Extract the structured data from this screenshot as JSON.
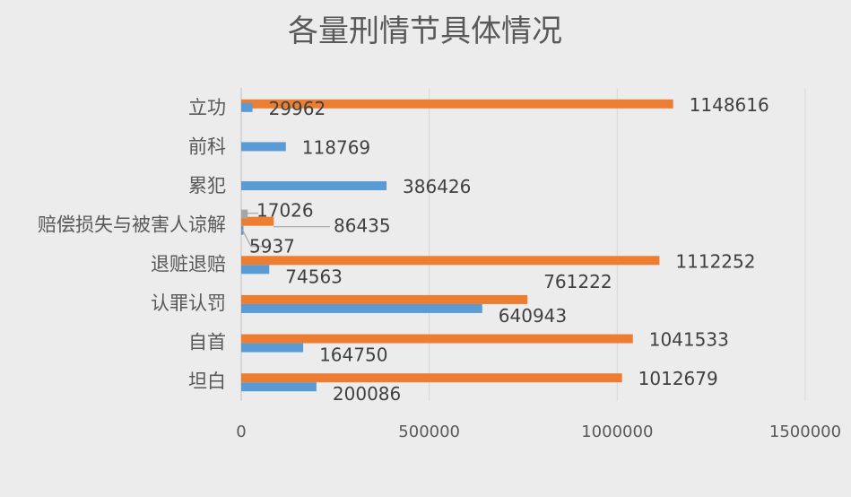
{
  "chart_data": {
    "type": "bar",
    "orientation": "horizontal",
    "title": "各量刑情节具体情况",
    "categories": [
      "坦白",
      "自首",
      "认罪认罚",
      "退赃退赔",
      "赔偿损失与被害人谅解",
      "累犯",
      "前科",
      "立功"
    ],
    "series": [
      {
        "values": [
          200086,
          164750,
          640943,
          74563,
          5937,
          null,
          null,
          null
        ]
      },
      {
        "values": [
          1012679,
          1041533,
          761222,
          1112252,
          86435,
          null,
          null,
          1148616
        ]
      },
      {
        "values": [
          null,
          null,
          null,
          null,
          17026,
          null,
          null,
          null
        ]
      },
      {
        "values": [
          null,
          null,
          null,
          null,
          null,
          386426,
          118769,
          29962
        ]
      }
    ],
    "data_labels": {
      "坦白": [
        "200086",
        "1012679"
      ],
      "自首": [
        "164750",
        "1041533"
      ],
      "认罪认罚": [
        "640943",
        "761222"
      ],
      "退赃退赔": [
        "74563",
        "1112252"
      ],
      "赔偿损失与被害人谅解": [
        "5937",
        "86435",
        "17026"
      ],
      "累犯": [
        "386426"
      ],
      "前科": [
        "118769"
      ],
      "立功": [
        "29962",
        "1148616"
      ]
    },
    "x_ticks": [
      "0",
      "500000",
      "1000000",
      "1500000"
    ],
    "xlim": [
      0,
      1500000
    ],
    "grid": "vertical",
    "legend": "none",
    "colors": {
      "blue": "#5b9bd5",
      "orange": "#ed7d31",
      "gray": "#a5a5a5"
    }
  }
}
